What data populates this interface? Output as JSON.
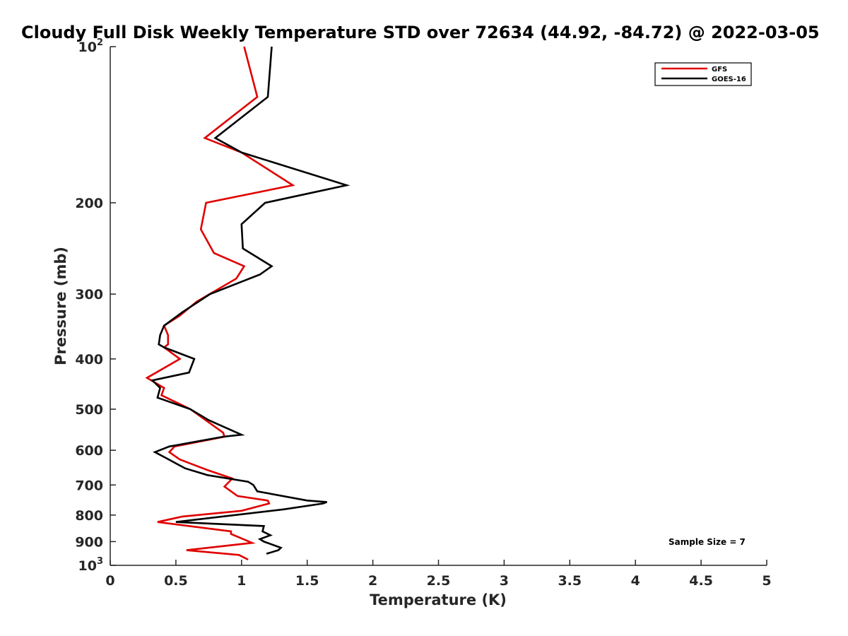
{
  "chart_data": {
    "type": "line",
    "title": "Cloudy Full Disk Weekly Temperature STD over 72634 (44.92, -84.72) @ 2022-03-05",
    "xlabel": "Temperature (K)",
    "ylabel": "Pressure (mb)",
    "xlim": [
      0,
      5
    ],
    "ylim": [
      100,
      1000
    ],
    "yscale": "log",
    "y_reversed": true,
    "grid": false,
    "legend_position": "top-right",
    "x_ticks": [
      "0",
      "0.5",
      "1",
      "1.5",
      "2",
      "2.5",
      "3",
      "3.5",
      "4",
      "4.5",
      "5"
    ],
    "y_ticks": [
      {
        "value": 100,
        "base": "10",
        "exp": "2"
      },
      {
        "value": 200,
        "label": "200"
      },
      {
        "value": 300,
        "label": "300"
      },
      {
        "value": 400,
        "label": "400"
      },
      {
        "value": 500,
        "label": "500"
      },
      {
        "value": 600,
        "label": "600"
      },
      {
        "value": 700,
        "label": "700"
      },
      {
        "value": 800,
        "label": "800"
      },
      {
        "value": 900,
        "label": "900"
      },
      {
        "value": 1000,
        "base": "10",
        "exp": "3"
      }
    ],
    "series": [
      {
        "name": "GFS",
        "color": "#e00000",
        "points": [
          [
            1.02,
            100
          ],
          [
            1.12,
            125
          ],
          [
            0.72,
            150
          ],
          [
            1.0,
            160
          ],
          [
            1.39,
            185
          ],
          [
            0.73,
            200
          ],
          [
            0.69,
            225
          ],
          [
            0.79,
            250
          ],
          [
            1.02,
            265
          ],
          [
            0.96,
            280
          ],
          [
            0.66,
            310
          ],
          [
            0.53,
            330
          ],
          [
            0.41,
            345
          ],
          [
            0.44,
            360
          ],
          [
            0.44,
            375
          ],
          [
            0.41,
            380
          ],
          [
            0.53,
            400
          ],
          [
            0.28,
            435
          ],
          [
            0.41,
            455
          ],
          [
            0.39,
            470
          ],
          [
            0.61,
            500
          ],
          [
            0.86,
            555
          ],
          [
            0.87,
            565
          ],
          [
            0.49,
            590
          ],
          [
            0.45,
            605
          ],
          [
            0.53,
            625
          ],
          [
            0.74,
            655
          ],
          [
            0.93,
            680
          ],
          [
            0.87,
            705
          ],
          [
            0.97,
            735
          ],
          [
            1.2,
            750
          ],
          [
            1.21,
            760
          ],
          [
            1.0,
            785
          ],
          [
            0.55,
            805
          ],
          [
            0.36,
            825
          ],
          [
            0.92,
            860
          ],
          [
            0.92,
            870
          ],
          [
            1.08,
            905
          ],
          [
            0.58,
            935
          ],
          [
            0.98,
            955
          ],
          [
            1.05,
            975
          ]
        ]
      },
      {
        "name": "GOES-16",
        "color": "#000000",
        "points": [
          [
            1.23,
            100
          ],
          [
            1.2,
            125
          ],
          [
            0.8,
            150
          ],
          [
            1.0,
            160
          ],
          [
            1.8,
            185
          ],
          [
            1.18,
            200
          ],
          [
            1.0,
            220
          ],
          [
            1.01,
            245
          ],
          [
            1.23,
            265
          ],
          [
            1.14,
            275
          ],
          [
            0.76,
            300
          ],
          [
            0.55,
            325
          ],
          [
            0.41,
            345
          ],
          [
            0.38,
            360
          ],
          [
            0.37,
            375
          ],
          [
            0.41,
            380
          ],
          [
            0.64,
            400
          ],
          [
            0.6,
            425
          ],
          [
            0.32,
            440
          ],
          [
            0.38,
            455
          ],
          [
            0.36,
            475
          ],
          [
            0.61,
            500
          ],
          [
            0.75,
            525
          ],
          [
            1.0,
            560
          ],
          [
            0.86,
            565
          ],
          [
            0.45,
            590
          ],
          [
            0.34,
            605
          ],
          [
            0.42,
            620
          ],
          [
            0.57,
            650
          ],
          [
            0.74,
            670
          ],
          [
            1.05,
            690
          ],
          [
            1.09,
            700
          ],
          [
            1.12,
            720
          ],
          [
            1.5,
            750
          ],
          [
            1.65,
            755
          ],
          [
            1.62,
            760
          ],
          [
            1.32,
            780
          ],
          [
            0.5,
            825
          ],
          [
            1.17,
            840
          ],
          [
            1.16,
            860
          ],
          [
            1.22,
            875
          ],
          [
            1.14,
            890
          ],
          [
            1.17,
            900
          ],
          [
            1.3,
            925
          ],
          [
            1.28,
            935
          ],
          [
            1.19,
            950
          ]
        ]
      }
    ],
    "annotation": "Sample Size = 7"
  }
}
